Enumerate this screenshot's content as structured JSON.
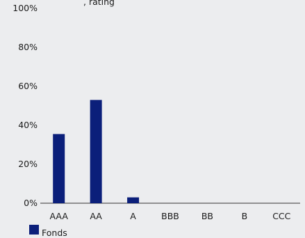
{
  "chart_data": {
    "type": "bar",
    "title_fragment": ", rating",
    "categories": [
      "AAA",
      "AA",
      "A",
      "BBB",
      "BB",
      "B",
      "CCC"
    ],
    "series": [
      {
        "name": "Fonds",
        "values": [
          35.5,
          53,
          3,
          0,
          0,
          0,
          0
        ]
      }
    ],
    "ylim": [
      0,
      100
    ],
    "yticks": [
      0,
      20,
      40,
      60,
      80,
      100
    ],
    "ytick_labels": [
      "0%",
      "20%",
      "40%",
      "60%",
      "80%",
      "100%"
    ],
    "legend_position": "bottom-left",
    "grid": false,
    "colors": {
      "bar": "#0b1f7a",
      "axis": "#333333"
    }
  }
}
